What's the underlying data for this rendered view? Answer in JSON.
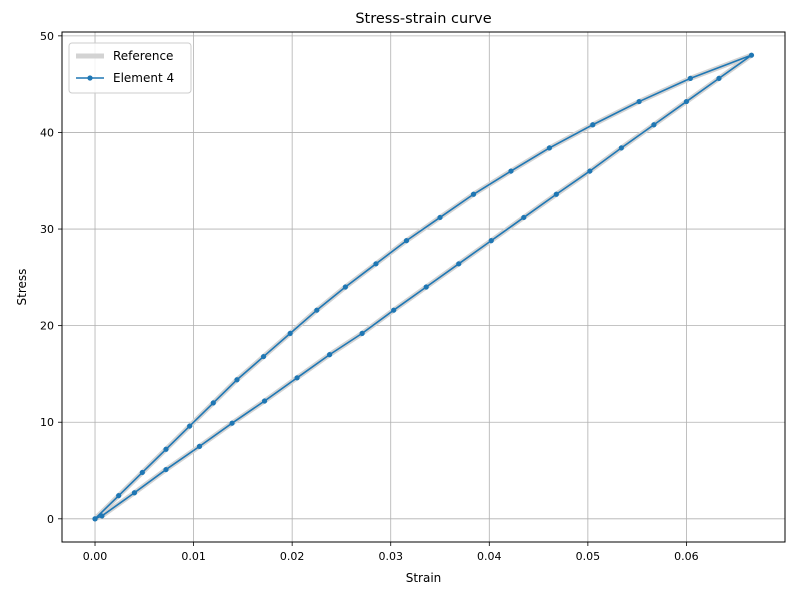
{
  "chart_data": {
    "type": "line",
    "title": "Stress-strain curve",
    "xlabel": "Strain",
    "ylabel": "Stress",
    "xlim": [
      -0.00335,
      0.07
    ],
    "ylim": [
      -2.4,
      50.4
    ],
    "x_ticks": [
      0.0,
      0.01,
      0.02,
      0.03,
      0.04,
      0.05,
      0.06
    ],
    "x_tick_labels": [
      "0.00",
      "0.01",
      "0.02",
      "0.03",
      "0.04",
      "0.05",
      "0.06"
    ],
    "y_ticks": [
      0,
      10,
      20,
      30,
      40,
      50
    ],
    "y_tick_labels": [
      "0",
      "10",
      "20",
      "30",
      "40",
      "50"
    ],
    "grid": true,
    "legend_position": "top-left",
    "series": [
      {
        "name": "Reference",
        "color": "#d3d3d3",
        "style": "thick-line",
        "x": [
          0.0,
          0.0024,
          0.0048,
          0.0072,
          0.0096,
          0.012,
          0.0144,
          0.0171,
          0.0198,
          0.0225,
          0.0254,
          0.0285,
          0.0316,
          0.035,
          0.0384,
          0.0422,
          0.0461,
          0.0505,
          0.0552,
          0.0604,
          0.0666,
          0.0633,
          0.06,
          0.0567,
          0.0534,
          0.0502,
          0.0468,
          0.0435,
          0.0402,
          0.0369,
          0.0336,
          0.0303,
          0.0271,
          0.0238,
          0.0205,
          0.0172,
          0.0139,
          0.0106,
          0.0072,
          0.004,
          0.0007,
          0.0
        ],
        "y": [
          0.0,
          2.4,
          4.8,
          7.2,
          9.6,
          12.0,
          14.4,
          16.8,
          19.2,
          21.6,
          24.0,
          26.4,
          28.8,
          31.2,
          33.6,
          36.0,
          38.4,
          40.8,
          43.2,
          45.6,
          48.0,
          45.6,
          43.2,
          40.8,
          38.4,
          36.0,
          33.6,
          31.2,
          28.8,
          26.4,
          24.0,
          21.6,
          19.2,
          17.0,
          14.6,
          12.2,
          9.9,
          7.5,
          5.1,
          2.7,
          0.3,
          0.0
        ]
      },
      {
        "name": "Element 4",
        "color": "#1f77b4",
        "style": "line-with-dots",
        "x": [
          0.0,
          0.0024,
          0.0048,
          0.0072,
          0.0096,
          0.012,
          0.0144,
          0.0171,
          0.0198,
          0.0225,
          0.0254,
          0.0285,
          0.0316,
          0.035,
          0.0384,
          0.0422,
          0.0461,
          0.0505,
          0.0552,
          0.0604,
          0.0666,
          0.0633,
          0.06,
          0.0567,
          0.0534,
          0.0502,
          0.0468,
          0.0435,
          0.0402,
          0.0369,
          0.0336,
          0.0303,
          0.0271,
          0.0238,
          0.0205,
          0.0172,
          0.0139,
          0.0106,
          0.0072,
          0.004,
          0.0007,
          0.0
        ],
        "y": [
          0.0,
          2.4,
          4.8,
          7.2,
          9.6,
          12.0,
          14.4,
          16.8,
          19.2,
          21.6,
          24.0,
          26.4,
          28.8,
          31.2,
          33.6,
          36.0,
          38.4,
          40.8,
          43.2,
          45.6,
          48.0,
          45.6,
          43.2,
          40.8,
          38.4,
          36.0,
          33.6,
          31.2,
          28.8,
          26.4,
          24.0,
          21.6,
          19.2,
          17.0,
          14.6,
          12.2,
          9.9,
          7.5,
          5.1,
          2.7,
          0.3,
          0.0
        ]
      }
    ]
  }
}
